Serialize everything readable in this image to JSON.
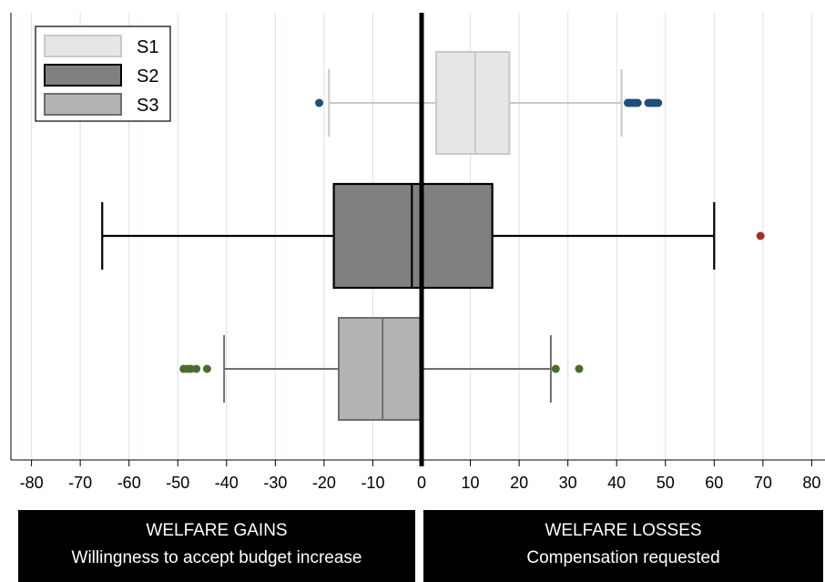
{
  "chart_data": {
    "type": "boxplot",
    "orientation": "horizontal",
    "title": "",
    "xlabel": "",
    "ylabel": "",
    "xlim": [
      -82,
      82
    ],
    "xticks": [
      -80,
      -70,
      -60,
      -50,
      -40,
      -30,
      -20,
      -10,
      0,
      10,
      20,
      30,
      40,
      50,
      60,
      70,
      80
    ],
    "grid": "vertical",
    "legend": "top-left",
    "reference_line_x": 0,
    "series": [
      {
        "name": "S1",
        "fill": "#e6e6e6",
        "stroke": "#c8c8c8",
        "whisker_low": -19,
        "q1": 3,
        "median": 11,
        "q3": 18,
        "whisker_high": 41,
        "outliers": [
          -21,
          42.3,
          42.8,
          43.3,
          43.8,
          44.3,
          46.5,
          47,
          47.5,
          48,
          48.5
        ],
        "outlier_color": "#1f4e79"
      },
      {
        "name": "S2",
        "fill": "#808080",
        "stroke": "#000000",
        "whisker_low": -65.5,
        "q1": -18,
        "median": -2,
        "q3": 14.5,
        "whisker_high": 60,
        "outliers": [
          69.5
        ],
        "outlier_color": "#a03030"
      },
      {
        "name": "S3",
        "fill": "#b3b3b3",
        "stroke": "#6e6e6e",
        "whisker_low": -40.5,
        "q1": -17,
        "median": -8,
        "q3": 0,
        "whisker_high": 26.5,
        "outliers": [
          -48.8,
          -48,
          -47.3,
          -46.2,
          -44,
          27.5,
          32.3
        ],
        "outlier_color": "#4d6b2e"
      }
    ]
  },
  "banners": {
    "gains_title": "WELFARE GAINS",
    "gains_subtitle": "Willingness to accept budget increase",
    "losses_title": "WELFARE LOSSES",
    "losses_subtitle": "Compensation requested"
  }
}
